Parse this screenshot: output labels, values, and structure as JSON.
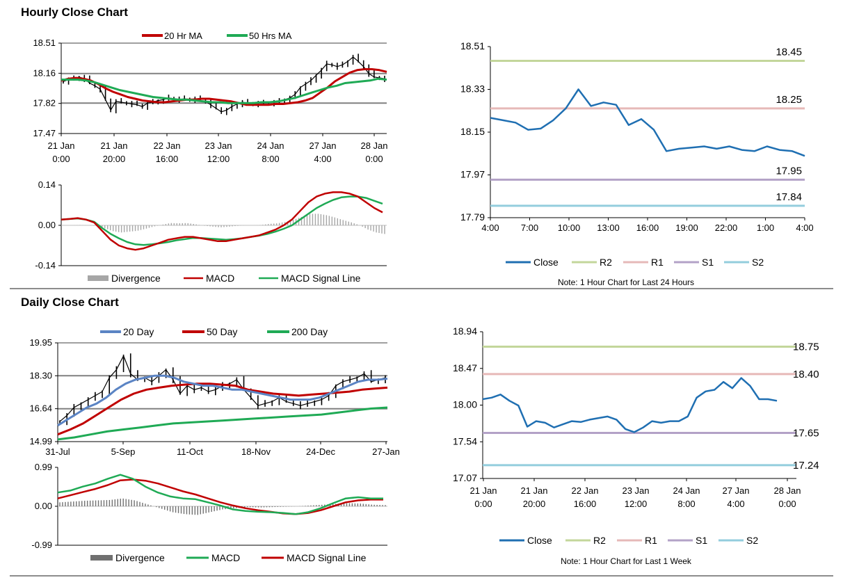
{
  "hourly": {
    "title": "Hourly Close Chart",
    "price_legend": [
      "20 Hr MA",
      "50 Hrs MA"
    ],
    "macd_legend": [
      "Divergence",
      "MACD",
      "MACD Signal Line"
    ],
    "note": "Note: 1 Hour Chart for Last 24 Hours"
  },
  "daily": {
    "title": "Daily Close Chart",
    "price_legend": [
      "20 Day",
      "50 Day",
      "200 Day"
    ],
    "macd_legend": [
      "Divergence",
      "MACD",
      "MACD Signal Line"
    ],
    "note": "Note: 1 Hour Chart for Last 1 Week"
  },
  "colors": {
    "price": "#000000",
    "ma_red": "#c00000",
    "ma_green": "#1faa55",
    "ma_blue": "#5b84c4",
    "divergence": "#a6a6a6",
    "divergence_dark": "#707070",
    "close": "#1f6fb2",
    "r2": "#c3d69b",
    "r1": "#e6b9b8",
    "s1": "#b3a2c7",
    "s2": "#93cddd",
    "grid": "#808080"
  },
  "chart_data": [
    {
      "id": "hourly-price",
      "type": "line",
      "title": "Hourly Close Chart",
      "ylim": [
        17.47,
        18.51
      ],
      "yticks": [
        "18.51",
        "18.16",
        "17.82",
        "17.47"
      ],
      "xlabels": [
        [
          "21 Jan",
          "0:00"
        ],
        [
          "21 Jan",
          "20:00"
        ],
        [
          "22 Jan",
          "16:00"
        ],
        [
          "23 Jan",
          "12:00"
        ],
        [
          "24 Jan",
          "8:00"
        ],
        [
          "27 Jan",
          "4:00"
        ],
        [
          "28 Jan",
          "0:00"
        ]
      ],
      "gridlines": [
        18.16,
        17.82
      ],
      "series": [
        {
          "name": "Price",
          "values": [
            18.07,
            18.09,
            18.1,
            18.12,
            18.1,
            18.05,
            18.02,
            17.98,
            17.86,
            17.74,
            17.84,
            17.83,
            17.82,
            17.81,
            17.8,
            17.78,
            17.82,
            17.83,
            17.85,
            17.86,
            17.88,
            17.87,
            17.86,
            17.87,
            17.86,
            17.87,
            17.85,
            17.84,
            17.8,
            17.76,
            17.72,
            17.74,
            17.78,
            17.81,
            17.83,
            17.82,
            17.81,
            17.82,
            17.82,
            17.82,
            17.83,
            17.84,
            17.86,
            17.88,
            17.92,
            18.0,
            18.04,
            18.08,
            18.14,
            18.2,
            18.27,
            18.26,
            18.24,
            18.26,
            18.3,
            18.35,
            18.3,
            18.24,
            18.16,
            18.12,
            18.11,
            18.1
          ]
        },
        {
          "name": "20 Hr MA",
          "values": [
            18.08,
            18.1,
            18.11,
            18.1,
            18.08,
            18.04,
            17.99,
            17.95,
            17.92,
            17.89,
            17.87,
            17.85,
            17.84,
            17.83,
            17.83,
            17.84,
            17.85,
            17.86,
            17.86,
            17.87,
            17.87,
            17.86,
            17.85,
            17.84,
            17.82,
            17.8,
            17.8,
            17.8,
            17.8,
            17.81,
            17.81,
            17.82,
            17.83,
            17.85,
            17.88,
            17.94,
            18.0,
            18.07,
            18.12,
            18.17,
            18.2,
            18.21,
            18.21,
            18.2,
            18.18
          ]
        },
        {
          "name": "50 Hrs MA",
          "values": [
            18.09,
            18.09,
            18.09,
            18.08,
            18.06,
            18.03,
            18.0,
            17.97,
            17.95,
            17.93,
            17.91,
            17.89,
            17.88,
            17.87,
            17.86,
            17.86,
            17.85,
            17.84,
            17.83,
            17.83,
            17.82,
            17.82,
            17.82,
            17.82,
            17.83,
            17.83,
            17.84,
            17.86,
            17.88,
            17.91,
            17.94,
            17.97,
            18.0,
            18.02,
            18.05,
            18.06,
            18.07,
            18.08,
            18.1,
            18.09
          ]
        }
      ]
    },
    {
      "id": "hourly-macd",
      "type": "line",
      "ylim": [
        -0.14,
        0.14
      ],
      "yticks": [
        "0.14",
        "0.00",
        "-0.14"
      ],
      "series": [
        {
          "name": "MACD",
          "values": [
            0.02,
            0.022,
            0.025,
            0.02,
            0.01,
            -0.02,
            -0.05,
            -0.07,
            -0.08,
            -0.085,
            -0.08,
            -0.07,
            -0.06,
            -0.05,
            -0.045,
            -0.04,
            -0.04,
            -0.045,
            -0.05,
            -0.055,
            -0.055,
            -0.05,
            -0.045,
            -0.04,
            -0.035,
            -0.025,
            -0.015,
            0.0,
            0.02,
            0.05,
            0.08,
            0.1,
            0.11,
            0.115,
            0.115,
            0.11,
            0.1,
            0.08,
            0.06,
            0.045
          ]
        },
        {
          "name": "MACD Signal Line",
          "values": [
            0.02,
            0.022,
            0.024,
            0.02,
            0.012,
            -0.01,
            -0.03,
            -0.045,
            -0.058,
            -0.066,
            -0.068,
            -0.066,
            -0.062,
            -0.058,
            -0.052,
            -0.048,
            -0.044,
            -0.044,
            -0.046,
            -0.048,
            -0.05,
            -0.048,
            -0.045,
            -0.04,
            -0.036,
            -0.03,
            -0.022,
            -0.012,
            0.0,
            0.02,
            0.04,
            0.06,
            0.075,
            0.088,
            0.097,
            0.1,
            0.1,
            0.095,
            0.085,
            0.075
          ]
        },
        {
          "name": "Divergence",
          "values": [
            0.0,
            0.0,
            0.001,
            0.0,
            -0.002,
            -0.01,
            -0.02,
            -0.025,
            -0.022,
            -0.019,
            -0.012,
            -0.004,
            0.002,
            0.008,
            0.007,
            0.008,
            0.004,
            -0.001,
            -0.004,
            -0.007,
            -0.005,
            -0.002,
            0.0,
            0.0,
            0.001,
            0.005,
            0.007,
            0.012,
            0.02,
            0.03,
            0.04,
            0.04,
            0.035,
            0.027,
            0.018,
            0.01,
            0.0,
            -0.015,
            -0.025,
            -0.03
          ]
        }
      ]
    },
    {
      "id": "hourly-pivot",
      "type": "line",
      "ylim": [
        17.79,
        18.51
      ],
      "yticks": [
        "18.51",
        "18.33",
        "18.15",
        "17.97",
        "17.79"
      ],
      "xlabels": [
        "4:00",
        "7:00",
        "10:00",
        "13:00",
        "16:00",
        "19:00",
        "22:00",
        "1:00",
        "4:00"
      ],
      "levels": [
        {
          "name": "R2",
          "value": 18.45,
          "label": "18.45"
        },
        {
          "name": "R1",
          "value": 18.25,
          "label": "18.25"
        },
        {
          "name": "S1",
          "value": 17.95,
          "label": "17.95"
        },
        {
          "name": "S2",
          "value": 17.84,
          "label": "17.84"
        }
      ],
      "series": [
        {
          "name": "Close",
          "values": [
            18.21,
            18.2,
            18.19,
            18.16,
            18.165,
            18.2,
            18.25,
            18.33,
            18.26,
            18.275,
            18.265,
            18.18,
            18.205,
            18.16,
            18.07,
            18.08,
            18.085,
            18.09,
            18.08,
            18.09,
            18.075,
            18.07,
            18.09,
            18.075,
            18.07,
            18.05
          ]
        }
      ],
      "legend": [
        "Close",
        "R2",
        "R1",
        "S1",
        "S2"
      ]
    },
    {
      "id": "daily-price",
      "type": "line",
      "title": "Daily Close Chart",
      "ylim": [
        14.99,
        19.95
      ],
      "yticks": [
        "19.95",
        "18.30",
        "16.64",
        "14.99"
      ],
      "xlabels": [
        "31-Jul",
        "5-Sep",
        "11-Oct",
        "18-Nov",
        "24-Dec",
        "27-Jan"
      ],
      "gridlines": [
        18.3,
        16.64
      ],
      "series": [
        {
          "name": "Price",
          "values": [
            16.0,
            16.3,
            16.7,
            16.9,
            17.1,
            17.3,
            17.5,
            18.2,
            18.6,
            19.3,
            18.4,
            18.1,
            18.2,
            18.0,
            18.3,
            18.6,
            18.1,
            17.4,
            17.8,
            17.6,
            17.7,
            17.5,
            17.6,
            17.8,
            17.9,
            18.1,
            17.6,
            17.2,
            16.8,
            16.9,
            17.0,
            17.2,
            17.0,
            16.9,
            16.8,
            16.9,
            17.0,
            17.1,
            17.3,
            17.8,
            18.0,
            18.1,
            18.2,
            18.4,
            18.0,
            18.1,
            18.2
          ]
        },
        {
          "name": "20 Day",
          "values": [
            15.8,
            16.1,
            16.4,
            16.7,
            16.9,
            17.2,
            17.6,
            17.9,
            18.1,
            18.2,
            18.3,
            18.3,
            18.2,
            18.0,
            17.9,
            17.8,
            17.8,
            17.7,
            17.6,
            17.6,
            17.5,
            17.4,
            17.3,
            17.2,
            17.1,
            17.1,
            17.1,
            17.2,
            17.4,
            17.6,
            17.8,
            18.0,
            18.1,
            18.1,
            18.15
          ]
        },
        {
          "name": "50 Day",
          "values": [
            15.35,
            15.6,
            15.9,
            16.3,
            16.7,
            17.1,
            17.4,
            17.6,
            17.7,
            17.8,
            17.85,
            17.9,
            17.9,
            17.85,
            17.8,
            17.6,
            17.5,
            17.4,
            17.35,
            17.3,
            17.35,
            17.4,
            17.45,
            17.5,
            17.6,
            17.65,
            17.7
          ]
        },
        {
          "name": "200 Day",
          "values": [
            15.1,
            15.2,
            15.35,
            15.5,
            15.6,
            15.7,
            15.8,
            15.9,
            15.95,
            16.0,
            16.05,
            16.1,
            16.15,
            16.2,
            16.25,
            16.3,
            16.35,
            16.45,
            16.55,
            16.65,
            16.7
          ]
        }
      ]
    },
    {
      "id": "daily-macd",
      "type": "line",
      "ylim": [
        -0.99,
        0.99
      ],
      "yticks": [
        "0.99",
        "0.00",
        "-0.99"
      ],
      "series": [
        {
          "name": "MACD",
          "values": [
            0.35,
            0.4,
            0.5,
            0.58,
            0.7,
            0.8,
            0.7,
            0.5,
            0.35,
            0.25,
            0.2,
            0.18,
            0.1,
            0.02,
            -0.08,
            -0.12,
            -0.14,
            -0.15,
            -0.17,
            -0.2,
            -0.15,
            -0.05,
            0.08,
            0.2,
            0.23,
            0.2,
            0.2
          ]
        },
        {
          "name": "MACD Signal Line",
          "values": [
            0.2,
            0.28,
            0.36,
            0.44,
            0.54,
            0.66,
            0.68,
            0.65,
            0.58,
            0.48,
            0.38,
            0.3,
            0.2,
            0.1,
            0.02,
            -0.05,
            -0.1,
            -0.14,
            -0.18,
            -0.2,
            -0.17,
            -0.1,
            0.0,
            0.1,
            0.15,
            0.17,
            0.17
          ]
        },
        {
          "name": "Divergence",
          "values": [
            0.1,
            0.12,
            0.14,
            0.15,
            0.16,
            0.2,
            0.15,
            0.05,
            -0.05,
            -0.15,
            -0.2,
            -0.22,
            -0.15,
            -0.08,
            -0.05,
            -0.02,
            -0.03,
            -0.02,
            -0.01,
            0.0,
            0.02,
            0.04,
            0.06,
            0.08,
            0.07,
            0.04,
            0.03
          ]
        }
      ]
    },
    {
      "id": "daily-pivot",
      "type": "line",
      "ylim": [
        17.07,
        18.94
      ],
      "yticks": [
        "18.94",
        "18.47",
        "18.00",
        "17.54",
        "17.07"
      ],
      "xlabels": [
        [
          "21 Jan",
          "0:00"
        ],
        [
          "21 Jan",
          "20:00"
        ],
        [
          "22 Jan",
          "16:00"
        ],
        [
          "23 Jan",
          "12:00"
        ],
        [
          "24 Jan",
          "8:00"
        ],
        [
          "27 Jan",
          "4:00"
        ],
        [
          "28 Jan",
          "0:00"
        ]
      ],
      "levels": [
        {
          "name": "R2",
          "value": 18.75,
          "label": "18.75"
        },
        {
          "name": "R1",
          "value": 18.4,
          "label": "18.40"
        },
        {
          "name": "S1",
          "value": 17.65,
          "label": "17.65"
        },
        {
          "name": "S2",
          "value": 17.24,
          "label": "17.24"
        }
      ],
      "series": [
        {
          "name": "Close",
          "values": [
            18.08,
            18.1,
            18.14,
            18.06,
            18.0,
            17.73,
            17.8,
            17.78,
            17.72,
            17.76,
            17.8,
            17.79,
            17.82,
            17.84,
            17.86,
            17.82,
            17.7,
            17.66,
            17.72,
            17.8,
            17.78,
            17.8,
            17.8,
            17.86,
            18.1,
            18.18,
            18.2,
            18.3,
            18.22,
            18.35,
            18.25,
            18.08,
            18.08,
            18.06
          ]
        }
      ],
      "legend": [
        "Close",
        "R2",
        "R1",
        "S1",
        "S2"
      ]
    }
  ]
}
